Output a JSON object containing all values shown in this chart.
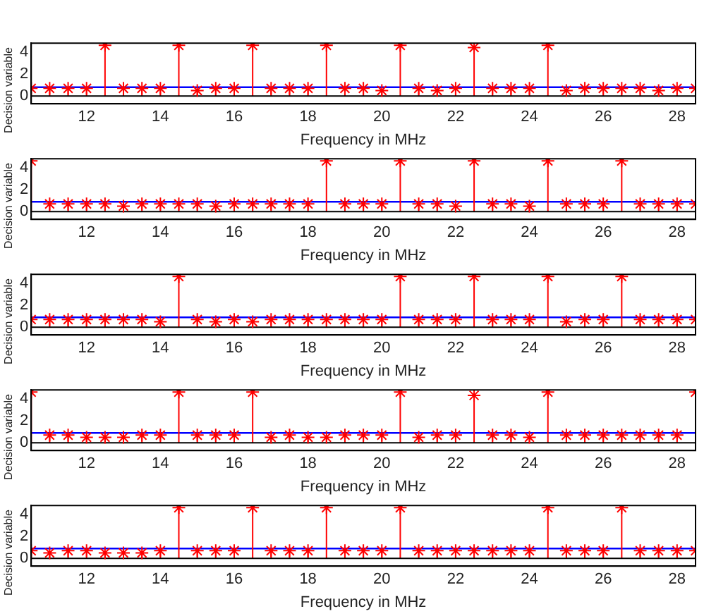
{
  "chart_data": [
    {
      "type": "lollipop",
      "xlabel": "Frequency in MHz",
      "ylabel": "Decision variable",
      "color": "#ff0000",
      "marker": "cross",
      "xlim": [
        10.5,
        28.5
      ],
      "xticks": [
        12,
        14,
        16,
        18,
        20,
        22,
        24,
        26,
        28
      ],
      "ylim": [
        -0.7,
        4.8
      ],
      "yticks": [
        0,
        2,
        4
      ],
      "x": [
        10.5,
        11,
        11.5,
        12,
        12.5,
        13,
        13.5,
        14,
        14.5,
        15,
        15.5,
        16,
        16.5,
        17,
        17.5,
        18,
        18.5,
        19,
        19.5,
        20,
        20.5,
        21,
        21.5,
        22,
        22.5,
        23,
        23.5,
        24,
        24.5,
        25,
        25.5,
        26,
        26.5,
        27,
        27.5,
        28,
        28.5
      ],
      "values": [
        0.7,
        0.7,
        0.7,
        0.7,
        4.6,
        0.7,
        0.7,
        0.7,
        4.6,
        0.5,
        0.7,
        0.7,
        4.6,
        0.7,
        0.7,
        0.7,
        4.6,
        0.7,
        0.7,
        0.5,
        4.6,
        0.7,
        0.5,
        0.7,
        4.4,
        0.7,
        0.7,
        0.7,
        4.6,
        0.5,
        0.7,
        0.7,
        0.7,
        0.7,
        0.5,
        0.7,
        0.7
      ],
      "ref_lines": [
        {
          "axis": "y",
          "value": 0.8,
          "color": "#0000ff"
        }
      ]
    },
    {
      "type": "lollipop",
      "xlabel": "Frequency in MHz",
      "ylabel": "Decision variable",
      "color": "#ff0000",
      "marker": "cross",
      "xlim": [
        10.5,
        28.5
      ],
      "xticks": [
        12,
        14,
        16,
        18,
        20,
        22,
        24,
        26,
        28
      ],
      "ylim": [
        -0.7,
        4.8
      ],
      "yticks": [
        0,
        2,
        4
      ],
      "x": [
        10.5,
        11,
        11.5,
        12,
        12.5,
        13,
        13.5,
        14,
        14.5,
        15,
        15.5,
        16,
        16.5,
        17,
        17.5,
        18,
        18.5,
        19,
        19.5,
        20,
        20.5,
        21,
        21.5,
        22,
        22.5,
        23,
        23.5,
        24,
        24.5,
        25,
        25.5,
        26,
        26.5,
        27,
        27.5,
        28,
        28.5
      ],
      "values": [
        4.6,
        0.7,
        0.7,
        0.7,
        0.7,
        0.5,
        0.7,
        0.7,
        0.7,
        0.7,
        0.5,
        0.7,
        0.7,
        0.7,
        0.7,
        0.7,
        4.6,
        0.7,
        0.7,
        0.7,
        4.6,
        0.7,
        0.7,
        0.5,
        4.6,
        0.7,
        0.7,
        0.5,
        4.6,
        0.7,
        0.7,
        0.7,
        4.6,
        0.7,
        0.7,
        0.7,
        0.7
      ],
      "ref_lines": [
        {
          "axis": "y",
          "value": 0.9,
          "color": "#0000ff"
        }
      ]
    },
    {
      "type": "lollipop",
      "xlabel": "Frequency in MHz",
      "ylabel": "Decision variable",
      "color": "#ff0000",
      "marker": "cross",
      "xlim": [
        10.5,
        28.5
      ],
      "xticks": [
        12,
        14,
        16,
        18,
        20,
        22,
        24,
        26,
        28
      ],
      "ylim": [
        -0.7,
        4.8
      ],
      "yticks": [
        0,
        2,
        4
      ],
      "x": [
        10.5,
        11,
        11.5,
        12,
        12.5,
        13,
        13.5,
        14,
        14.5,
        15,
        15.5,
        16,
        16.5,
        17,
        17.5,
        18,
        18.5,
        19,
        19.5,
        20,
        20.5,
        21,
        21.5,
        22,
        22.5,
        23,
        23.5,
        24,
        24.5,
        25,
        25.5,
        26,
        26.5,
        27,
        27.5,
        28,
        28.5
      ],
      "values": [
        0.7,
        0.7,
        0.7,
        0.7,
        0.7,
        0.7,
        0.7,
        0.5,
        4.6,
        0.7,
        0.5,
        0.7,
        0.5,
        0.7,
        0.7,
        0.7,
        0.7,
        0.7,
        0.7,
        0.7,
        4.6,
        0.7,
        0.7,
        0.7,
        4.6,
        0.7,
        0.7,
        0.7,
        4.6,
        0.5,
        0.7,
        0.7,
        4.6,
        0.7,
        0.7,
        0.7,
        0.7
      ],
      "ref_lines": [
        {
          "axis": "y",
          "value": 0.9,
          "color": "#0000ff"
        }
      ]
    },
    {
      "type": "lollipop",
      "xlabel": "Frequency in MHz",
      "ylabel": "Decision variable",
      "color": "#ff0000",
      "marker": "cross",
      "xlim": [
        10.5,
        28.5
      ],
      "xticks": [
        12,
        14,
        16,
        18,
        20,
        22,
        24,
        26,
        28
      ],
      "ylim": [
        -0.7,
        4.8
      ],
      "yticks": [
        0,
        2,
        4
      ],
      "x": [
        10.5,
        11,
        11.5,
        12,
        12.5,
        13,
        13.5,
        14,
        14.5,
        15,
        15.5,
        16,
        16.5,
        17,
        17.5,
        18,
        18.5,
        19,
        19.5,
        20,
        20.5,
        21,
        21.5,
        22,
        22.5,
        23,
        23.5,
        24,
        24.5,
        25,
        25.5,
        26,
        26.5,
        27,
        27.5,
        28,
        28.5
      ],
      "values": [
        4.6,
        0.7,
        0.7,
        0.5,
        0.5,
        0.5,
        0.7,
        0.7,
        4.6,
        0.7,
        0.7,
        0.7,
        4.6,
        0.5,
        0.7,
        0.5,
        0.5,
        0.7,
        0.7,
        0.7,
        4.6,
        0.5,
        0.7,
        0.7,
        4.3,
        0.7,
        0.7,
        0.5,
        4.6,
        0.7,
        0.7,
        0.7,
        0.7,
        0.7,
        0.7,
        0.7,
        4.6
      ],
      "ref_lines": [
        {
          "axis": "y",
          "value": 0.9,
          "color": "#0000ff"
        }
      ]
    },
    {
      "type": "lollipop",
      "xlabel": "Frequency in MHz",
      "ylabel": "Decision variable",
      "color": "#ff0000",
      "marker": "cross",
      "xlim": [
        10.5,
        28.5
      ],
      "xticks": [
        12,
        14,
        16,
        18,
        20,
        22,
        24,
        26,
        28
      ],
      "ylim": [
        -0.7,
        4.8
      ],
      "yticks": [
        0,
        2,
        4
      ],
      "x": [
        10.5,
        11,
        11.5,
        12,
        12.5,
        13,
        13.5,
        14,
        14.5,
        15,
        15.5,
        16,
        16.5,
        17,
        17.5,
        18,
        18.5,
        19,
        19.5,
        20,
        20.5,
        21,
        21.5,
        22,
        22.5,
        23,
        23.5,
        24,
        24.5,
        25,
        25.5,
        26,
        26.5,
        27,
        27.5,
        28,
        28.5
      ],
      "values": [
        0.7,
        0.5,
        0.7,
        0.7,
        0.5,
        0.5,
        0.5,
        0.7,
        4.6,
        0.7,
        0.7,
        0.7,
        4.6,
        0.7,
        0.7,
        0.7,
        4.6,
        0.7,
        0.7,
        0.7,
        4.6,
        0.7,
        0.7,
        0.7,
        0.7,
        0.7,
        0.7,
        0.7,
        4.6,
        0.7,
        0.7,
        0.7,
        4.6,
        0.7,
        0.7,
        0.7,
        0.7
      ],
      "ref_lines": [
        {
          "axis": "y",
          "value": 0.9,
          "color": "#0000ff"
        }
      ]
    }
  ]
}
